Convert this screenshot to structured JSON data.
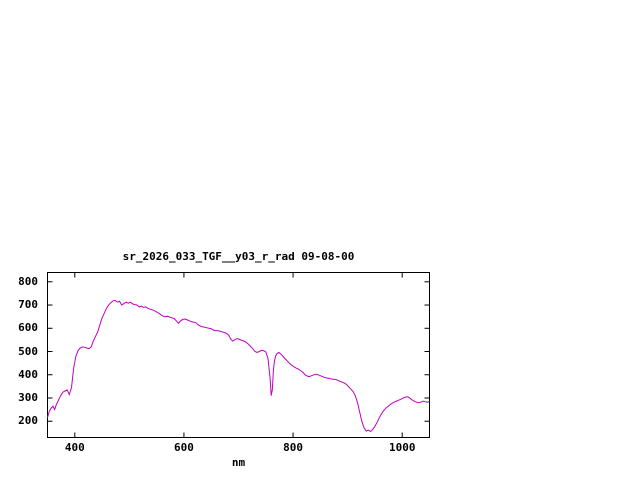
{
  "page": {
    "background": "#ffffff"
  },
  "chart_data": {
    "type": "line",
    "title": "sr_2026_033_TGF__y03_r_rad 09-08-00",
    "xlabel": "nm",
    "ylabel": "",
    "x_ticks": [
      400,
      600,
      800,
      1000
    ],
    "y_ticks": [
      200,
      300,
      400,
      500,
      600,
      700,
      800
    ],
    "xlim": [
      350,
      1050
    ],
    "ylim": [
      130,
      840
    ],
    "grid": false,
    "legend": "none",
    "line_color": "#c000c0",
    "axis_color": "#000000",
    "series": [
      {
        "name": "sr_2026_033_TGF__y03_r_rad",
        "points": [
          [
            350,
            215
          ],
          [
            353,
            240
          ],
          [
            356,
            255
          ],
          [
            360,
            265
          ],
          [
            363,
            250
          ],
          [
            366,
            270
          ],
          [
            370,
            290
          ],
          [
            374,
            310
          ],
          [
            378,
            325
          ],
          [
            382,
            330
          ],
          [
            386,
            335
          ],
          [
            390,
            315
          ],
          [
            394,
            345
          ],
          [
            398,
            430
          ],
          [
            402,
            480
          ],
          [
            406,
            505
          ],
          [
            410,
            515
          ],
          [
            414,
            520
          ],
          [
            418,
            518
          ],
          [
            422,
            515
          ],
          [
            426,
            512
          ],
          [
            430,
            520
          ],
          [
            434,
            545
          ],
          [
            438,
            565
          ],
          [
            442,
            585
          ],
          [
            446,
            615
          ],
          [
            450,
            645
          ],
          [
            454,
            665
          ],
          [
            458,
            685
          ],
          [
            462,
            700
          ],
          [
            466,
            710
          ],
          [
            470,
            718
          ],
          [
            474,
            720
          ],
          [
            478,
            712
          ],
          [
            482,
            716
          ],
          [
            486,
            700
          ],
          [
            490,
            706
          ],
          [
            494,
            712
          ],
          [
            498,
            708
          ],
          [
            502,
            712
          ],
          [
            506,
            705
          ],
          [
            510,
            702
          ],
          [
            514,
            700
          ],
          [
            518,
            692
          ],
          [
            522,
            695
          ],
          [
            526,
            690
          ],
          [
            530,
            692
          ],
          [
            534,
            686
          ],
          [
            538,
            682
          ],
          [
            542,
            680
          ],
          [
            546,
            675
          ],
          [
            550,
            670
          ],
          [
            554,
            665
          ],
          [
            558,
            658
          ],
          [
            562,
            652
          ],
          [
            566,
            650
          ],
          [
            570,
            652
          ],
          [
            574,
            648
          ],
          [
            578,
            645
          ],
          [
            582,
            642
          ],
          [
            586,
            632
          ],
          [
            590,
            622
          ],
          [
            594,
            632
          ],
          [
            598,
            638
          ],
          [
            602,
            640
          ],
          [
            606,
            636
          ],
          [
            610,
            632
          ],
          [
            614,
            628
          ],
          [
            618,
            626
          ],
          [
            622,
            624
          ],
          [
            626,
            615
          ],
          [
            630,
            610
          ],
          [
            634,
            606
          ],
          [
            638,
            605
          ],
          [
            642,
            602
          ],
          [
            646,
            600
          ],
          [
            650,
            598
          ],
          [
            654,
            592
          ],
          [
            658,
            590
          ],
          [
            662,
            590
          ],
          [
            666,
            588
          ],
          [
            670,
            585
          ],
          [
            674,
            582
          ],
          [
            678,
            578
          ],
          [
            682,
            570
          ],
          [
            686,
            552
          ],
          [
            690,
            545
          ],
          [
            694,
            552
          ],
          [
            698,
            555
          ],
          [
            702,
            552
          ],
          [
            706,
            548
          ],
          [
            710,
            545
          ],
          [
            714,
            540
          ],
          [
            718,
            532
          ],
          [
            722,
            522
          ],
          [
            726,
            512
          ],
          [
            730,
            500
          ],
          [
            734,
            496
          ],
          [
            738,
            500
          ],
          [
            742,
            505
          ],
          [
            746,
            504
          ],
          [
            750,
            498
          ],
          [
            754,
            470
          ],
          [
            758,
            380
          ],
          [
            760,
            310
          ],
          [
            762,
            335
          ],
          [
            764,
            420
          ],
          [
            766,
            460
          ],
          [
            768,
            480
          ],
          [
            770,
            490
          ],
          [
            774,
            496
          ],
          [
            778,
            488
          ],
          [
            782,
            478
          ],
          [
            786,
            468
          ],
          [
            790,
            458
          ],
          [
            794,
            448
          ],
          [
            798,
            440
          ],
          [
            802,
            434
          ],
          [
            806,
            428
          ],
          [
            810,
            424
          ],
          [
            814,
            418
          ],
          [
            818,
            410
          ],
          [
            822,
            400
          ],
          [
            826,
            394
          ],
          [
            830,
            392
          ],
          [
            834,
            396
          ],
          [
            838,
            400
          ],
          [
            842,
            402
          ],
          [
            846,
            400
          ],
          [
            850,
            396
          ],
          [
            854,
            392
          ],
          [
            858,
            388
          ],
          [
            862,
            386
          ],
          [
            866,
            384
          ],
          [
            870,
            382
          ],
          [
            874,
            380
          ],
          [
            878,
            380
          ],
          [
            882,
            376
          ],
          [
            886,
            372
          ],
          [
            890,
            368
          ],
          [
            894,
            364
          ],
          [
            898,
            358
          ],
          [
            902,
            348
          ],
          [
            906,
            338
          ],
          [
            910,
            328
          ],
          [
            914,
            310
          ],
          [
            918,
            280
          ],
          [
            922,
            240
          ],
          [
            926,
            200
          ],
          [
            930,
            172
          ],
          [
            934,
            158
          ],
          [
            938,
            162
          ],
          [
            942,
            156
          ],
          [
            946,
            165
          ],
          [
            950,
            178
          ],
          [
            954,
            195
          ],
          [
            958,
            215
          ],
          [
            962,
            232
          ],
          [
            966,
            246
          ],
          [
            970,
            256
          ],
          [
            974,
            264
          ],
          [
            978,
            272
          ],
          [
            982,
            278
          ],
          [
            986,
            283
          ],
          [
            990,
            287
          ],
          [
            994,
            291
          ],
          [
            998,
            295
          ],
          [
            1002,
            300
          ],
          [
            1006,
            304
          ],
          [
            1010,
            305
          ],
          [
            1014,
            300
          ],
          [
            1018,
            292
          ],
          [
            1022,
            286
          ],
          [
            1026,
            282
          ],
          [
            1030,
            280
          ],
          [
            1034,
            282
          ],
          [
            1038,
            286
          ],
          [
            1042,
            284
          ],
          [
            1046,
            282
          ],
          [
            1050,
            285
          ]
        ]
      }
    ]
  }
}
